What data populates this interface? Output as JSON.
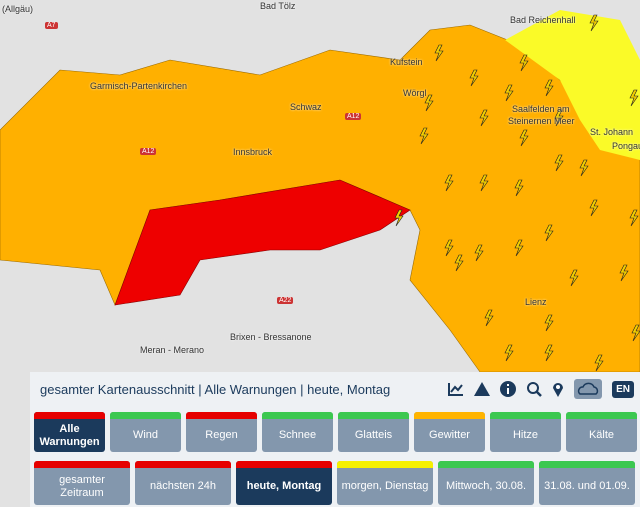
{
  "map": {
    "labels": [
      "(Allgäu)",
      "A7",
      "Bad Tölz",
      "Bad Reichenhall",
      "Kufstein",
      "Garmisch-Partenkirchen",
      "Wörgl",
      "Saalfelden am",
      "Steinernen Meer",
      "A12",
      "Schwaz",
      "Innsbruck",
      "A12",
      "St. Johann",
      "Pongau",
      "Lienz",
      "A22",
      "Meran - Merano",
      "Brixen - Bressanone"
    ]
  },
  "panel": {
    "title": "gesamter Kartenausschnitt | Alle Warnungen | heute, Montag",
    "language": "EN",
    "types": [
      {
        "label": "Alle Warnungen",
        "color": "#e60000",
        "selected": true
      },
      {
        "label": "Wind",
        "color": "#3cc850"
      },
      {
        "label": "Regen",
        "color": "#e60000"
      },
      {
        "label": "Schnee",
        "color": "#3cc850"
      },
      {
        "label": "Glatteis",
        "color": "#3cc850"
      },
      {
        "label": "Gewitter",
        "color": "#ffb400"
      },
      {
        "label": "Hitze",
        "color": "#3cc850"
      },
      {
        "label": "Kälte",
        "color": "#3cc850"
      }
    ],
    "periods": [
      {
        "label": "gesamter Zeitraum",
        "color": "#e60000"
      },
      {
        "label": "nächsten 24h",
        "color": "#e60000"
      },
      {
        "label": "heute, Montag",
        "color": "#e60000",
        "selected": true
      },
      {
        "label": "morgen, Dienstag",
        "color": "#f5f000"
      },
      {
        "label": "Mittwoch, 30.08.",
        "color": "#3cc850"
      },
      {
        "label": "31.08. und 01.09.",
        "color": "#3cc850"
      }
    ]
  }
}
